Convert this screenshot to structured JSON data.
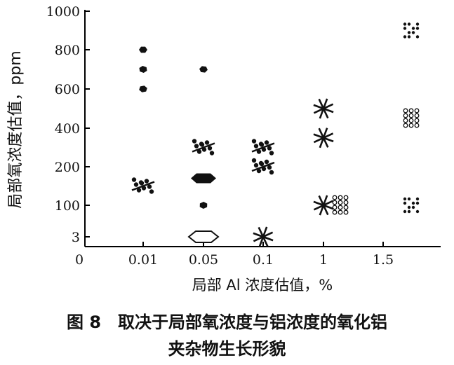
{
  "chart_data": {
    "type": "scatter",
    "ylabel": "局部氧浓度估值，ppm",
    "xlabel": "局部 Al 浓度估值，%",
    "x_ticks": [
      "0",
      "0.01",
      "0.05",
      "0.1",
      "1",
      "1.5"
    ],
    "y_ticks": [
      "3",
      "100",
      "200",
      "400",
      "600",
      "800",
      "1000"
    ],
    "grid": false,
    "series": [
      {
        "points": [
          {
            "x": "0.01",
            "y": 800,
            "shape": "polygon"
          },
          {
            "x": "0.01",
            "y": 700,
            "shape": "polygon"
          },
          {
            "x": "0.01",
            "y": 600,
            "shape": "polygon"
          },
          {
            "x": "0.05",
            "y": 700,
            "shape": "polygon"
          },
          {
            "x": "0.05",
            "y": 100,
            "shape": "polygon"
          }
        ]
      },
      {
        "points": [
          {
            "x": "0.01",
            "y": 150,
            "shape": "dendrite-cluster"
          },
          {
            "x": "0.05",
            "y": 300,
            "shape": "dendrite-cluster"
          },
          {
            "x": "0.1",
            "y": 200,
            "shape": "dendrite-cluster"
          },
          {
            "x": "0.1",
            "y": 300,
            "shape": "dendrite-cluster"
          }
        ]
      },
      {
        "points": [
          {
            "x": "0.05",
            "y": 170,
            "shape": "plate"
          },
          {
            "x": "0.05",
            "y": 3,
            "shape": "plate"
          }
        ]
      },
      {
        "points": [
          {
            "x": "1",
            "y": 350,
            "shape": "star"
          },
          {
            "x": "1",
            "y": 500,
            "shape": "star"
          },
          {
            "x": "0.1",
            "y": 3,
            "shape": "star"
          },
          {
            "x": "1",
            "y": 100,
            "shape": "star"
          }
        ]
      },
      {
        "points": [
          {
            "x": "1.5",
            "y": 900,
            "shape": "dot-cluster"
          },
          {
            "x": "1.5",
            "y": 100,
            "shape": "dot-cluster"
          }
        ]
      },
      {
        "points": [
          {
            "x": "1.5",
            "y": 450,
            "shape": "ring-cluster"
          },
          {
            "x": "1",
            "y": 100,
            "shape": "ring-cluster"
          }
        ]
      }
    ]
  },
  "caption": {
    "line1": "图 8　取决于局部氧浓度与铝浓度的氧化铝",
    "line2": "夹杂物生长形貌"
  }
}
